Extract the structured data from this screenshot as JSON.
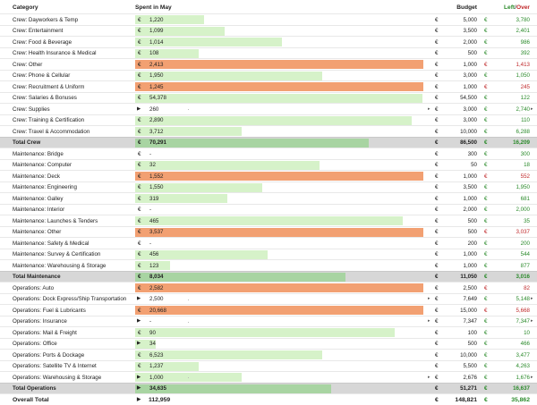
{
  "header": {
    "category": "Category",
    "spent": "Spent in May",
    "budget": "Budget",
    "left": "Left",
    "slash": "/",
    "over": "Over"
  },
  "currency": "€",
  "colors": {
    "under_bar": "#d6f2c9",
    "over_bar": "#f2a072",
    "total_bar": "#a8d4a2",
    "total_row": "#d7d7d7",
    "left_text": "#2a8a2a",
    "over_text": "#c0292b"
  },
  "rows": [
    {
      "cat": "Crew: Dayworkers & Temp",
      "spent": "1,220",
      "budget": "5,000",
      "left": "3,780",
      "fill": 0.24,
      "status": "under"
    },
    {
      "cat": "Crew: Entertainment",
      "spent": "1,099",
      "budget": "3,500",
      "left": "2,401",
      "fill": 0.31,
      "status": "under"
    },
    {
      "cat": "Crew: Food & Beverage",
      "spent": "1,014",
      "budget": "2,000",
      "left": "986",
      "fill": 0.51,
      "status": "under"
    },
    {
      "cat": "Crew: Health Insurance & Medical",
      "spent": "108",
      "budget": "500",
      "left": "392",
      "fill": 0.22,
      "status": "under"
    },
    {
      "cat": "Crew: Other",
      "spent": "2,413",
      "budget": "1,000",
      "left": "1,413",
      "fill": 1,
      "status": "over"
    },
    {
      "cat": "Crew: Phone & Cellular",
      "spent": "1,950",
      "budget": "3,000",
      "left": "1,050",
      "fill": 0.65,
      "status": "under"
    },
    {
      "cat": "Crew: Recruitment & Uniform",
      "spent": "1,245",
      "budget": "1,000",
      "left": "245",
      "fill": 1,
      "status": "over"
    },
    {
      "cat": "Crew: Salaries & Bonuses",
      "spent": "54,378",
      "budget": "54,500",
      "left": "122",
      "fill": 0.998,
      "status": "under"
    },
    {
      "cat": "Crew: Supplies",
      "spent": "260",
      "budget": "3,000",
      "left": "2,740",
      "fill": 0,
      "status": "under",
      "tri": true,
      "arrows": true
    },
    {
      "cat": "Crew: Training & Certification",
      "spent": "2,890",
      "budget": "3,000",
      "left": "110",
      "fill": 0.96,
      "status": "under"
    },
    {
      "cat": "Crew: Travel & Accommodation",
      "spent": "3,712",
      "budget": "10,000",
      "left": "6,288",
      "fill": 0.37,
      "status": "under"
    },
    {
      "cat": "Total Crew",
      "spent": "70,291",
      "budget": "86,500",
      "left": "16,209",
      "fill": 0.81,
      "status": "under",
      "total": true
    },
    {
      "cat": "Maintenance: Bridge",
      "spent": "-",
      "budget": "300",
      "left": "300",
      "fill": 0,
      "status": "under",
      "blank": true
    },
    {
      "cat": "Maintenance: Computer",
      "spent": "32",
      "budget": "50",
      "left": "18",
      "fill": 0.64,
      "status": "under"
    },
    {
      "cat": "Maintenance: Deck",
      "spent": "1,552",
      "budget": "1,000",
      "left": "552",
      "fill": 1,
      "status": "over"
    },
    {
      "cat": "Maintenance: Engineering",
      "spent": "1,550",
      "budget": "3,500",
      "left": "1,950",
      "fill": 0.44,
      "status": "under"
    },
    {
      "cat": "Maintenance: Galley",
      "spent": "319",
      "budget": "1,000",
      "left": "681",
      "fill": 0.32,
      "status": "under"
    },
    {
      "cat": "Maintenance: Interior",
      "spent": "-",
      "budget": "2,000",
      "left": "2,000",
      "fill": 0,
      "status": "under",
      "blank": true
    },
    {
      "cat": "Maintenance: Launches & Tenders",
      "spent": "465",
      "budget": "500",
      "left": "35",
      "fill": 0.93,
      "status": "under"
    },
    {
      "cat": "Maintenance: Other",
      "spent": "3,537",
      "budget": "500",
      "left": "3,037",
      "fill": 1,
      "status": "over"
    },
    {
      "cat": "Maintenance: Safety & Medical",
      "spent": "-",
      "budget": "200",
      "left": "200",
      "fill": 0,
      "status": "under",
      "blank": true
    },
    {
      "cat": "Maintenance: Survey & Certification",
      "spent": "456",
      "budget": "1,000",
      "left": "544",
      "fill": 0.46,
      "status": "under"
    },
    {
      "cat": "Maintenance: Warehousing & Storage",
      "spent": "123",
      "budget": "1,000",
      "left": "877",
      "fill": 0.12,
      "status": "under"
    },
    {
      "cat": "Total Maintenance",
      "spent": "8,034",
      "budget": "11,050",
      "left": "3,016",
      "fill": 0.73,
      "status": "under",
      "total": true
    },
    {
      "cat": "Operations: Auto",
      "spent": "2,582",
      "budget": "2,500",
      "left": "82",
      "fill": 1,
      "status": "over"
    },
    {
      "cat": "Operations: Dock Express/Ship Transportation",
      "spent": "2,500",
      "budget": "7,649",
      "left": "5,148",
      "fill": 0,
      "status": "under",
      "tri": true,
      "arrows": true
    },
    {
      "cat": "Operations: Fuel & Lubricants",
      "spent": "20,668",
      "budget": "15,000",
      "left": "5,668",
      "fill": 1,
      "status": "over"
    },
    {
      "cat": "Operations: Insurance",
      "spent": "-",
      "budget": "7,347",
      "left": "7,347",
      "fill": 0,
      "status": "under",
      "tri": true,
      "blank": true,
      "arrows": true
    },
    {
      "cat": "Operations: Mail & Freight",
      "spent": "90",
      "budget": "100",
      "left": "10",
      "fill": 0.9,
      "status": "under"
    },
    {
      "cat": "Operations: Office",
      "spent": "34",
      "budget": "500",
      "left": "466",
      "fill": 0.07,
      "status": "under",
      "tri": true
    },
    {
      "cat": "Operations: Ports & Dockage",
      "spent": "6,523",
      "budget": "10,000",
      "left": "3,477",
      "fill": 0.65,
      "status": "under"
    },
    {
      "cat": "Operations: Satellite TV & Internet",
      "spent": "1,237",
      "budget": "5,500",
      "left": "4,263",
      "fill": 0.22,
      "status": "under"
    },
    {
      "cat": "Operations: Warehousing & Storage",
      "spent": "1,000",
      "budget": "2,676",
      "left": "1,676",
      "fill": 0.37,
      "status": "under",
      "tri": true,
      "arrows": true
    },
    {
      "cat": "Total Operations",
      "spent": "34,635",
      "budget": "51,271",
      "left": "16,637",
      "fill": 0.68,
      "status": "under",
      "total": true,
      "tri": true
    },
    {
      "cat": "Overall Total",
      "spent": "112,959",
      "budget": "148,821",
      "left": "35,862",
      "fill": 0,
      "status": "under",
      "grand": true,
      "tri": true
    }
  ]
}
